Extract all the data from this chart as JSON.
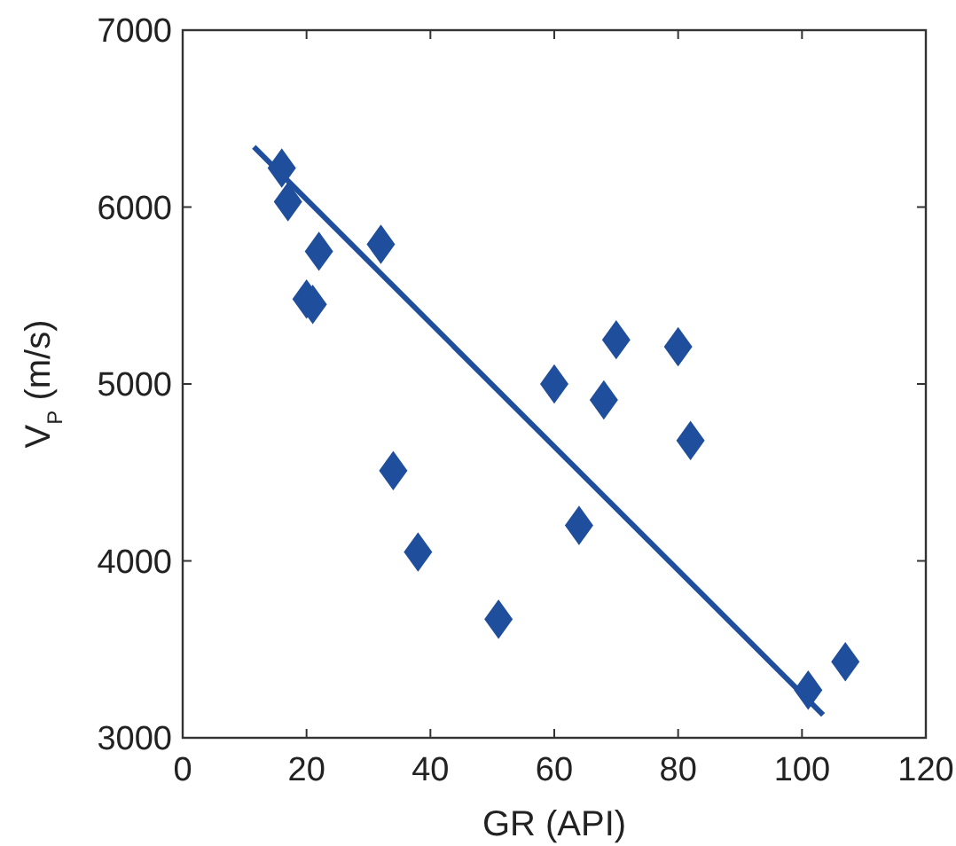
{
  "chart_data": {
    "type": "scatter",
    "xlabel": "GR (API)",
    "ylabel": "V$_{P}$ (m/s)",
    "xlim": [
      0,
      120
    ],
    "xticks": [
      0,
      20,
      40,
      60,
      80,
      100,
      120
    ],
    "ylim": [
      3000,
      7000
    ],
    "yticks": [
      3000,
      4000,
      5000,
      6000,
      7000
    ],
    "grid": false,
    "series": [
      {
        "marker": "diamond",
        "color": "#1f4e9c",
        "x": [
          16,
          17,
          22,
          20,
          21,
          32,
          34,
          38,
          51,
          60,
          64,
          68,
          70,
          80,
          82,
          101,
          107
        ],
        "values": [
          6220,
          6030,
          5750,
          5480,
          5450,
          5790,
          4510,
          4050,
          3670,
          5000,
          4200,
          4910,
          5250,
          5210,
          4680,
          3270,
          3430
        ]
      },
      {
        "type": "line",
        "marker": "none",
        "line_style": "solid",
        "color": "#1f4e9c",
        "x": [
          11.5,
          103.4
        ],
        "values": [
          6340,
          3130
        ]
      }
    ]
  }
}
